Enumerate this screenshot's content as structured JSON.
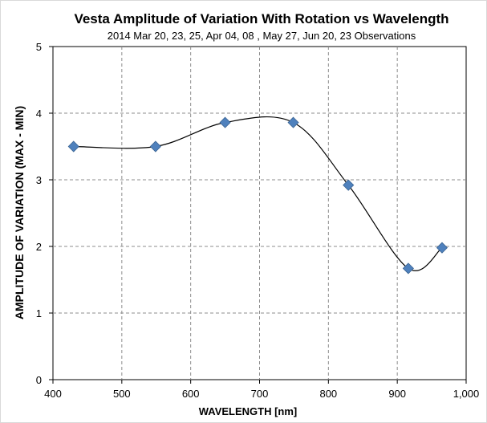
{
  "chart_data": {
    "type": "scatter",
    "title": "Vesta Amplitude of Variation With Rotation vs Wavelength",
    "subtitle": "2014  Mar 20,  23,  25,  Apr 04,  08  ,  May 27,  Jun 20,  23  Observations",
    "xlabel": "WAVELENGTH  [nm]",
    "ylabel": "AMPLITUDE OF VARIATION (MAX - MIN)",
    "xlim": [
      400,
      1000
    ],
    "ylim": [
      0,
      5
    ],
    "x_ticks": [
      "400",
      "500",
      "600",
      "700",
      "800",
      "900",
      "1,000"
    ],
    "y_ticks": [
      "0",
      "1",
      "2",
      "3",
      "4",
      "5"
    ],
    "grid": true,
    "smooth_line": true,
    "marker_color": "#4f81bd",
    "line_color": "#000000",
    "series": [
      {
        "x": [
          430,
          549,
          650,
          749,
          829,
          916,
          965
        ],
        "y": [
          3.5,
          3.5,
          3.86,
          3.86,
          2.92,
          1.67,
          1.98
        ]
      }
    ]
  }
}
